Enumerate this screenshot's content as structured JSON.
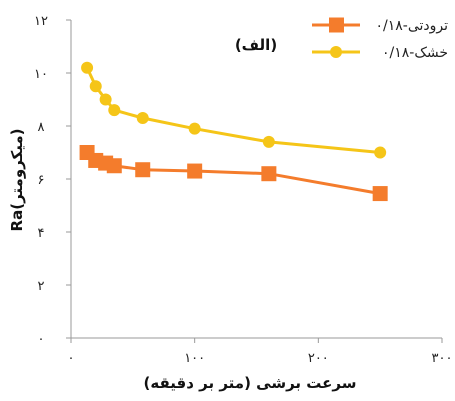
{
  "chart_data": {
    "type": "line",
    "title": "(الف)",
    "xlabel": "سرعت برشی (متر بر دقیقه)",
    "ylabel": "Ra(میکرومتر)",
    "xlim": [
      0,
      300
    ],
    "ylim": [
      0,
      12
    ],
    "x_ticks": [
      0,
      100,
      200,
      300
    ],
    "x_tick_labels": [
      "۰",
      "۱۰۰",
      "۲۰۰",
      "۳۰۰"
    ],
    "y_ticks": [
      0,
      2,
      4,
      6,
      8,
      10,
      12
    ],
    "y_tick_labels": [
      "۰",
      "۲",
      "۴",
      "۶",
      "۸",
      "۱۰",
      "۱۲"
    ],
    "grid": false,
    "legend_position": "top-right",
    "series": [
      {
        "name": "ترودتی-۰/۱۸",
        "color": "#f47c2c",
        "marker": "square",
        "x": [
          13,
          20,
          28,
          35,
          58,
          100,
          160,
          250
        ],
        "y": [
          7.0,
          6.7,
          6.6,
          6.5,
          6.35,
          6.3,
          6.2,
          5.45
        ]
      },
      {
        "name": "خشک-۰/۱۸",
        "color": "#f5c518",
        "marker": "circle",
        "x": [
          13,
          20,
          28,
          35,
          58,
          100,
          160,
          250
        ],
        "y": [
          10.2,
          9.5,
          9.0,
          8.6,
          8.3,
          7.9,
          7.4,
          7.0
        ]
      }
    ]
  }
}
